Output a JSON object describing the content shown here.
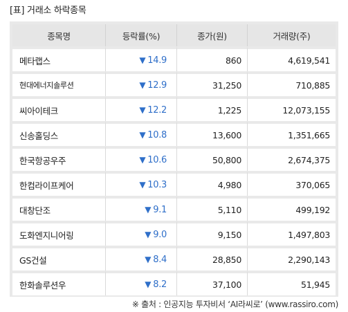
{
  "title": "[표] 거래소 하락종목",
  "headers": [
    "종목명",
    "등락률(%)",
    "종가(원)",
    "거래량(주)"
  ],
  "rows": [
    {
      "name": "메타랩스",
      "rate": "14.9",
      "close": "860",
      "volume": "4,619,541"
    },
    {
      "name": "현대에너지솔루션",
      "rate": "12.9",
      "close": "31,250",
      "volume": "710,885"
    },
    {
      "name": "씨아이테크",
      "rate": "12.2",
      "close": "1,225",
      "volume": "12,073,155"
    },
    {
      "name": "신송홀딩스",
      "rate": "10.8",
      "close": "13,600",
      "volume": "1,351,665"
    },
    {
      "name": "한국항공우주",
      "rate": "10.6",
      "close": "50,800",
      "volume": "2,674,375"
    },
    {
      "name": "한컴라이프케어",
      "rate": "10.3",
      "close": "4,980",
      "volume": "370,065"
    },
    {
      "name": "대창단조",
      "rate": "9.1",
      "close": "5,110",
      "volume": "499,192"
    },
    {
      "name": "도화엔지니어링",
      "rate": "9.0",
      "close": "9,150",
      "volume": "1,497,803"
    },
    {
      "name": "GS건설",
      "rate": "8.4",
      "close": "28,850",
      "volume": "2,290,143"
    },
    {
      "name": "한화솔루션우",
      "rate": "8.2",
      "close": "37,100",
      "volume": "51,945"
    }
  ],
  "down_arrow": "▼",
  "rate_color": "#2f6fc9",
  "source": "※ 출처 : 인공지능 투자비서 ‘AI라씨로’ (www.rassiro.com)"
}
